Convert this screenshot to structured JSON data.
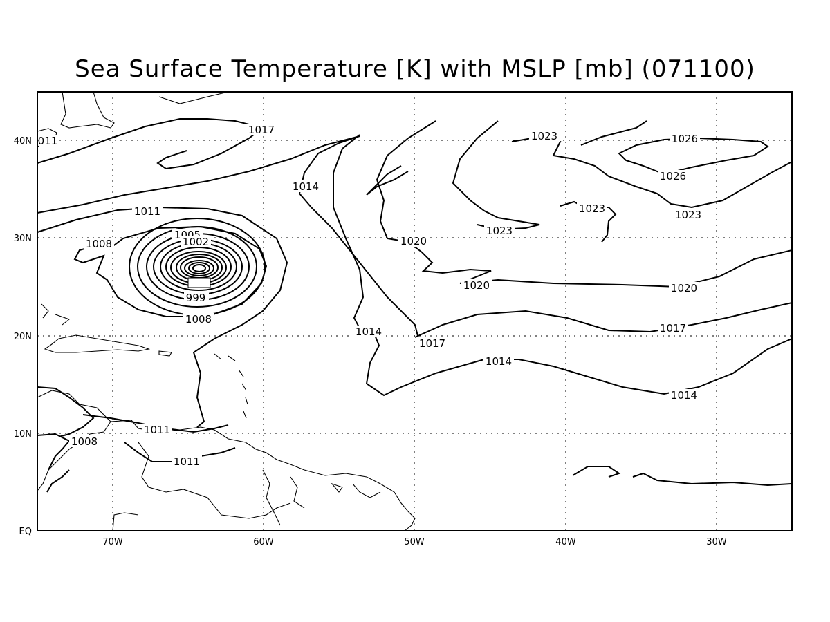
{
  "title": "Sea Surface Temperature [K] with MSLP [mb] (071100)",
  "lon_ticks": [
    "70W",
    "60W",
    "50W",
    "40W",
    "30W"
  ],
  "lat_ticks": [
    "40N",
    "30N",
    "20N",
    "10N",
    "EQ"
  ],
  "contour_labels": [
    "1017",
    "011",
    "1023",
    "1026",
    "1014",
    "1026",
    "1011",
    "1023",
    "1005",
    "1002",
    "1023",
    "1008",
    "1020",
    "999",
    "1020",
    "1020",
    "1008",
    "1017",
    "1014",
    "1017",
    "1014",
    "1014",
    "1011",
    "1008",
    "1011"
  ]
}
